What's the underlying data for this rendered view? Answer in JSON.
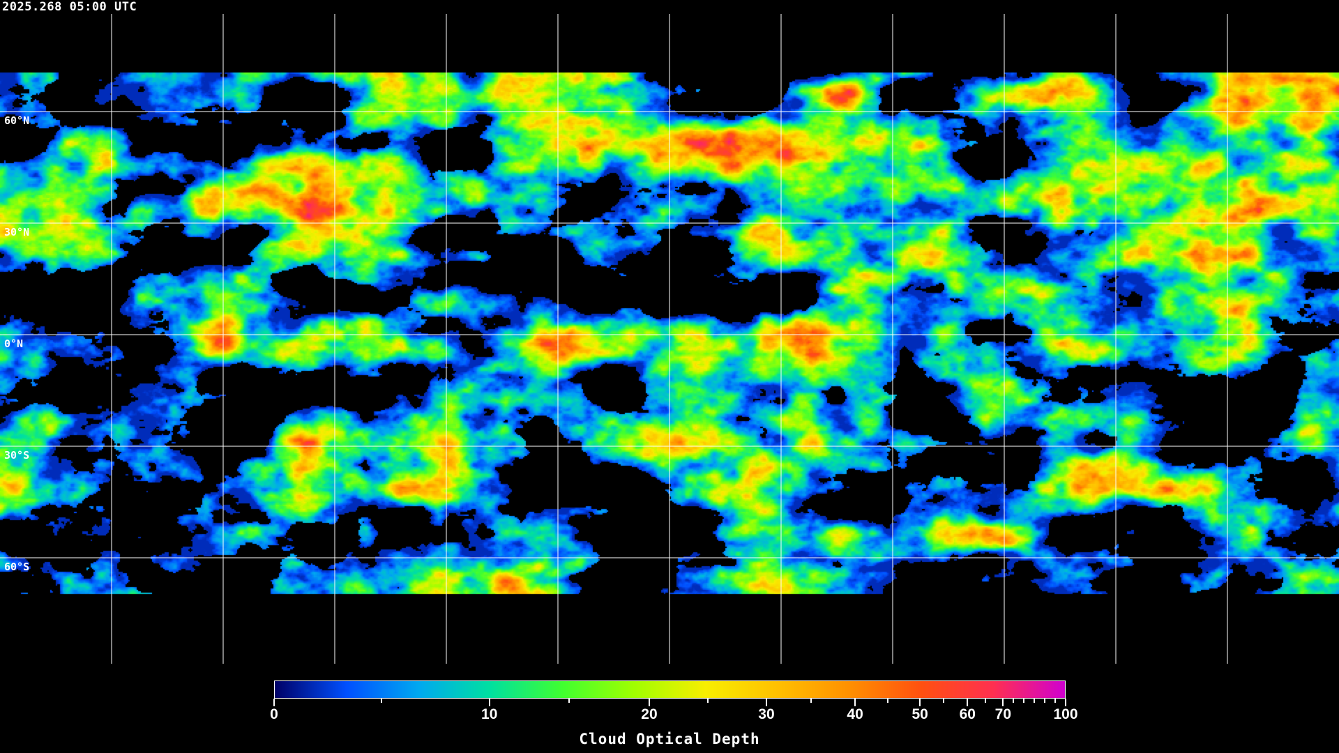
{
  "title": "2025.268 05:00 UTC",
  "latitude_labels": [
    "60°N",
    "30°N",
    "0°N",
    "30°S",
    "60°S"
  ],
  "colorbar": {
    "label": "Cloud Optical Depth",
    "ticks": [
      {
        "label": "0",
        "value": 0
      },
      {
        "label": "10",
        "value": 10
      },
      {
        "label": "20",
        "value": 20
      },
      {
        "label": "30",
        "value": 30
      },
      {
        "label": "40",
        "value": 40
      },
      {
        "label": "50",
        "value": 50
      },
      {
        "label": "60",
        "value": 60
      },
      {
        "label": "70",
        "value": 70
      },
      {
        "label": "100",
        "value": 100
      }
    ],
    "minor_ticks": [
      5,
      15,
      25,
      35,
      45,
      55,
      65,
      75,
      80,
      85,
      90,
      95
    ],
    "colors": [
      "#000066",
      "#0050ff",
      "#00a8f0",
      "#00e0a0",
      "#40ff30",
      "#a0ff00",
      "#f8ee00",
      "#ffc000",
      "#ff9000",
      "#ff5010",
      "#ff3050",
      "#d000d0"
    ]
  },
  "map": {
    "projection": "equirectangular",
    "gridline_spacing_deg": 30,
    "background": "#000000",
    "coastline_color": "#ffffff"
  }
}
